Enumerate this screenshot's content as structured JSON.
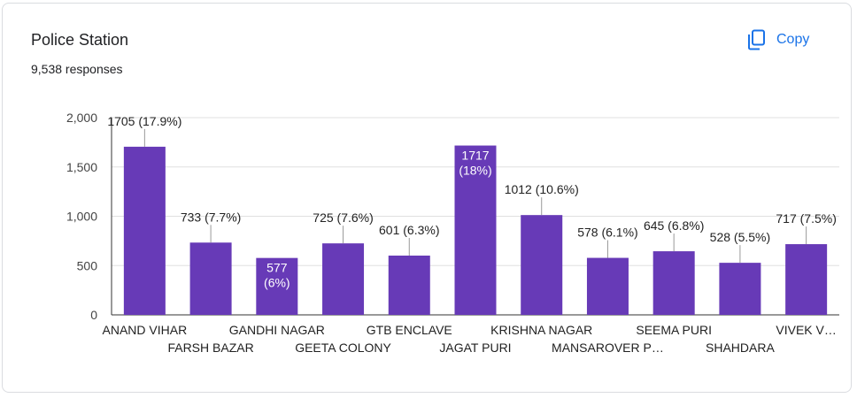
{
  "card": {
    "title": "Police Station",
    "subtitle": "9,538 responses",
    "copy_label": "Copy",
    "copy_icon": "copy-icon"
  },
  "colors": {
    "bar": "#673ab7",
    "accent": "#1a73e8",
    "grid": "#e0e0e0"
  },
  "chart_data": {
    "type": "bar",
    "title": "",
    "xlabel": "",
    "ylabel": "",
    "ylim": [
      0,
      2000
    ],
    "yticks": [
      0,
      500,
      1000,
      1500,
      2000
    ],
    "ytick_labels": [
      "0",
      "500",
      "1,000",
      "1,500",
      "2,000"
    ],
    "categories": [
      "ANAND VIHAR",
      "FARSH BAZAR",
      "GANDHI NAGAR",
      "GEETA COLONY",
      "GTB ENCLAVE",
      "JAGAT PURI",
      "KRISHNA NAGAR",
      "MANSAROVER P…",
      "SEEMA PURI",
      "SHAHDARA",
      "VIVEK V…"
    ],
    "values": [
      1705,
      733,
      577,
      725,
      601,
      1717,
      1012,
      578,
      645,
      528,
      717
    ],
    "data_labels": [
      "1705 (17.9%)",
      "733 (7.7%)",
      "577 (6%)",
      "725 (7.6%)",
      "601 (6.3%)",
      "1717 (18%)",
      "1012 (10.6%)",
      "578 (6.1%)",
      "645 (6.8%)",
      "528 (5.5%)",
      "717 (7.5%)"
    ],
    "grid": true,
    "legend": "none"
  }
}
